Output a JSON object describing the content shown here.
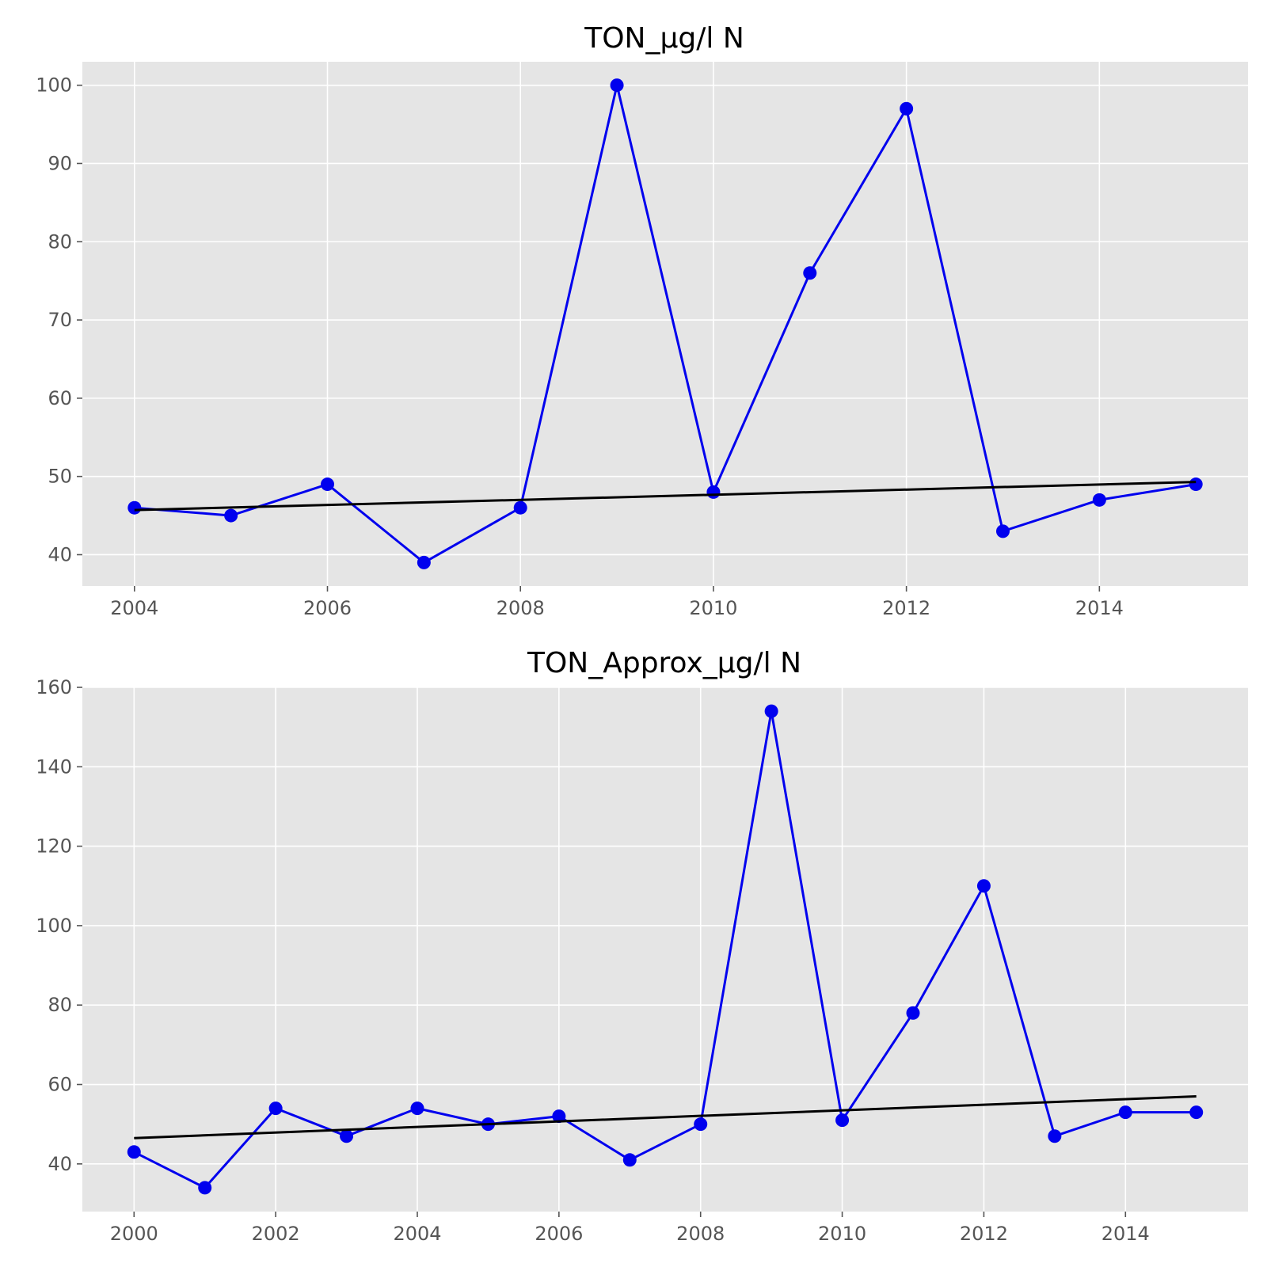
{
  "colors": {
    "background": "#ffffff",
    "plot_background": "#e5e5e5",
    "grid": "#ffffff",
    "series": "#0000ee",
    "trend": "#000000",
    "tick_text": "#555555",
    "title_text": "#000000"
  },
  "chart_data": [
    {
      "type": "line",
      "title": "TON_µg/l N",
      "xlabel": "",
      "ylabel": "",
      "xlim": [
        2003.46,
        2015.54
      ],
      "ylim": [
        36,
        103
      ],
      "xticks": [
        2004,
        2006,
        2008,
        2010,
        2012,
        2014
      ],
      "yticks": [
        40,
        50,
        60,
        70,
        80,
        90,
        100
      ],
      "grid": true,
      "legend": "none",
      "x": [
        2004,
        2005,
        2006,
        2007,
        2008,
        2009,
        2010,
        2011,
        2012,
        2013,
        2014,
        2015
      ],
      "series": [
        {
          "values": [
            46,
            45,
            49,
            39,
            46,
            100,
            48,
            76,
            97,
            43,
            47,
            49
          ],
          "style": "line-marker",
          "color": "#0000ee"
        }
      ],
      "trend": {
        "x": [
          2004,
          2015
        ],
        "y": [
          45.7,
          49.3
        ],
        "color": "#000000"
      }
    },
    {
      "type": "line",
      "title": "TON_Approx_µg/l N",
      "xlabel": "",
      "ylabel": "",
      "xlim": [
        1999.27,
        2015.73
      ],
      "ylim": [
        28,
        160
      ],
      "xticks": [
        2000,
        2002,
        2004,
        2006,
        2008,
        2010,
        2012,
        2014
      ],
      "yticks": [
        40,
        60,
        80,
        100,
        120,
        140,
        160
      ],
      "grid": true,
      "legend": "none",
      "x": [
        2000,
        2001,
        2002,
        2003,
        2004,
        2005,
        2006,
        2007,
        2008,
        2009,
        2010,
        2011,
        2012,
        2013,
        2014,
        2015
      ],
      "series": [
        {
          "values": [
            43,
            34,
            54,
            47,
            54,
            50,
            52,
            41,
            50,
            154,
            51,
            78,
            110,
            47,
            53,
            53
          ],
          "style": "line-marker",
          "color": "#0000ee"
        }
      ],
      "trend": {
        "x": [
          2000,
          2015
        ],
        "y": [
          46.5,
          57
        ],
        "color": "#000000"
      }
    }
  ]
}
